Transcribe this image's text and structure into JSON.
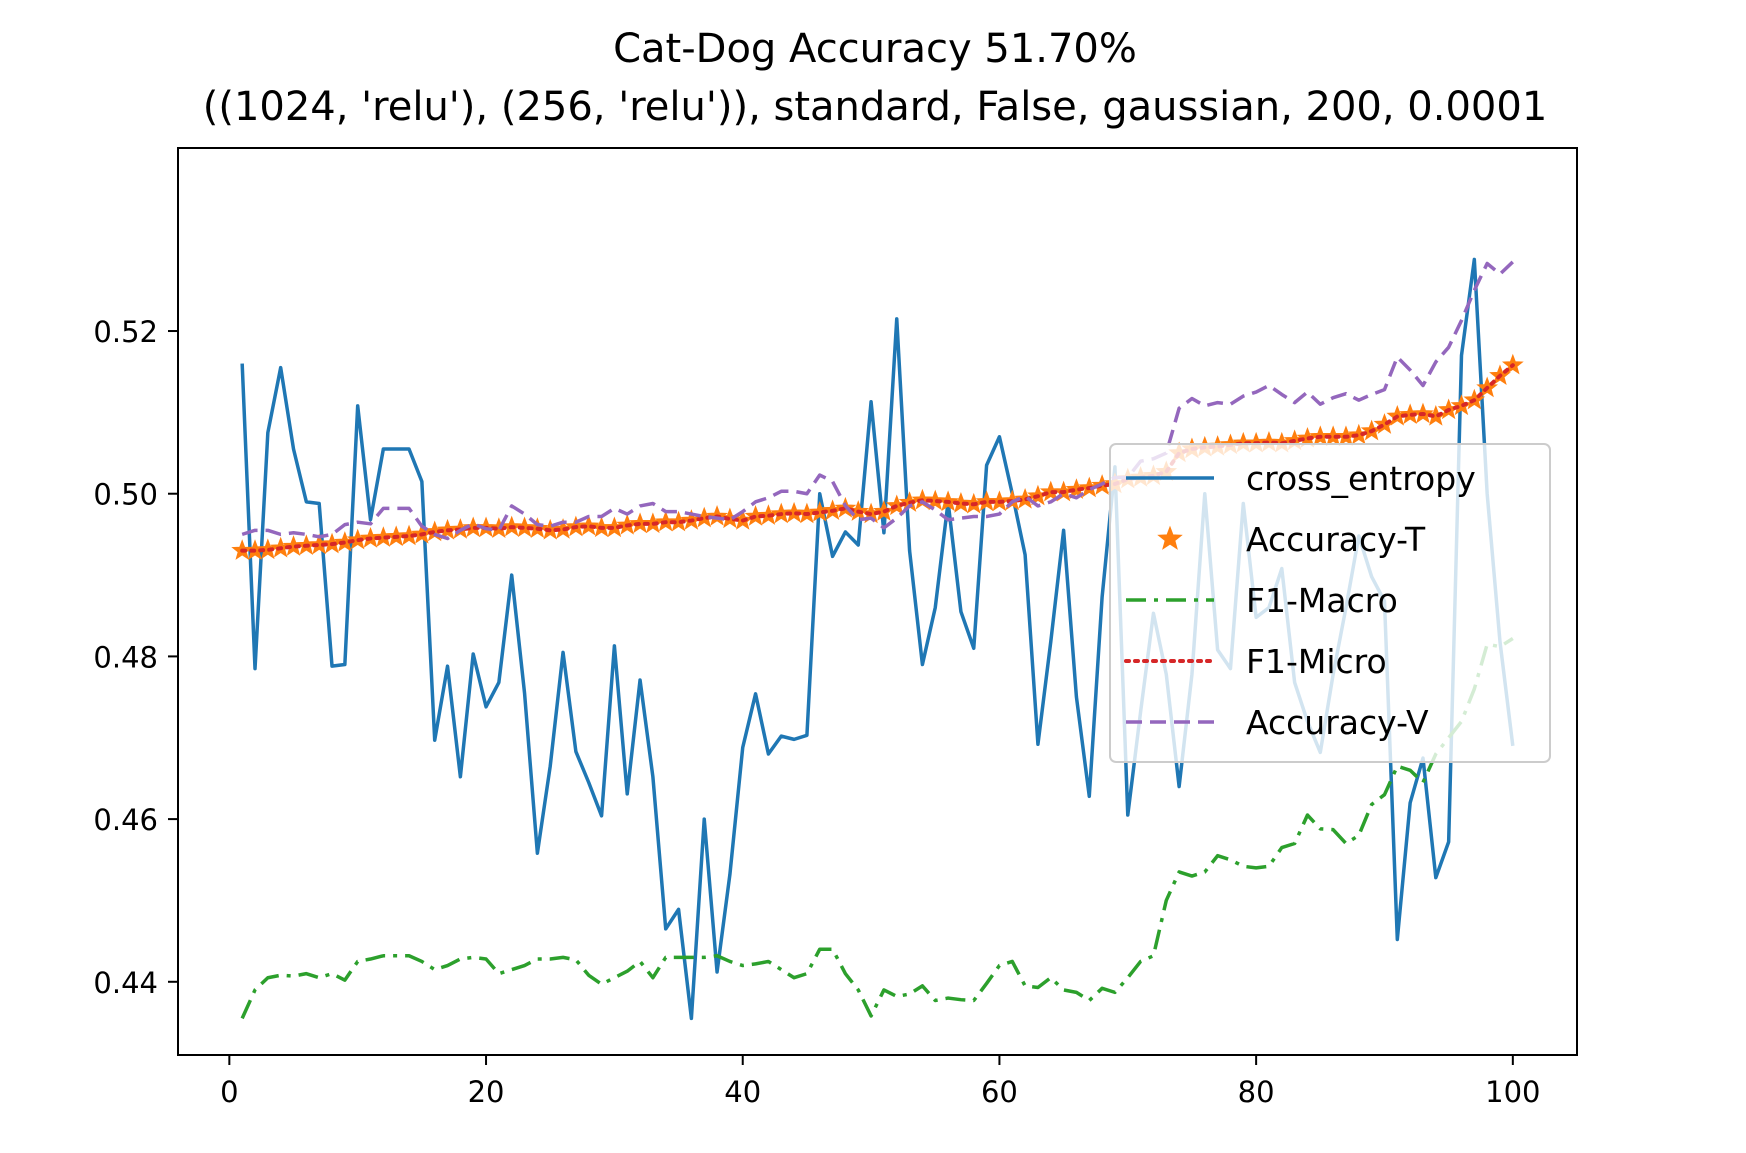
{
  "chart_data": {
    "type": "line",
    "title": "Cat-Dog Accuracy 51.70%",
    "subtitle": "((1024, 'relu'), (256, 'relu')), standard, False, gaussian, 200, 0.0001",
    "xlabel": "",
    "ylabel": "",
    "xlim": [
      -4,
      105
    ],
    "ylim": [
      0.431,
      0.5425
    ],
    "xticks": [
      0,
      20,
      40,
      60,
      80,
      100
    ],
    "yticks": [
      0.44,
      0.46,
      0.48,
      0.5,
      0.52
    ],
    "ytick_labels": [
      "0.44",
      "0.46",
      "0.48",
      "0.50",
      "0.52"
    ],
    "grid": false,
    "legend_position": "center-right",
    "series": [
      {
        "name": "cross_entropy",
        "color": "#1f77b4",
        "style": "solid",
        "x_start": 1,
        "values": [
          0.516,
          0.4785,
          0.5075,
          0.5155,
          0.5055,
          0.499,
          0.4988,
          0.4788,
          0.479,
          0.5108,
          0.4968,
          0.5055,
          0.5055,
          0.5055,
          0.5015,
          0.4697,
          0.4788,
          0.4652,
          0.4803,
          0.4738,
          0.4768,
          0.49,
          0.4755,
          0.4558,
          0.4665,
          0.4805,
          0.4683,
          0.4645,
          0.4604,
          0.4813,
          0.4631,
          0.4771,
          0.4652,
          0.4465,
          0.4489,
          0.4355,
          0.46,
          0.4412,
          0.4532,
          0.4688,
          0.4754,
          0.468,
          0.4702,
          0.4698,
          0.4703,
          0.5,
          0.4923,
          0.4953,
          0.4937,
          0.5113,
          0.4952,
          0.5215,
          0.493,
          0.479,
          0.486,
          0.499,
          0.4855,
          0.481,
          0.5035,
          0.507,
          0.5,
          0.4925,
          0.4692,
          0.4818,
          0.4955,
          0.475,
          0.4628,
          0.4873,
          0.5033,
          0.4605,
          0.4732,
          0.4853,
          0.4778,
          0.464,
          0.4778,
          0.5,
          0.4808,
          0.4785,
          0.4988,
          0.4848,
          0.486,
          0.4908,
          0.4768,
          0.472,
          0.4682,
          0.4778,
          0.486,
          0.4948,
          0.4898,
          0.4868,
          0.4452,
          0.462,
          0.4675,
          0.4528,
          0.4572,
          0.517,
          0.5288,
          0.5,
          0.4818,
          0.469
        ]
      },
      {
        "name": "Accuracy-T",
        "color": "#ff7f0e",
        "style": "star-markers",
        "x_start": 1,
        "values": [
          0.493,
          0.493,
          0.4931,
          0.4933,
          0.4935,
          0.4936,
          0.4937,
          0.4938,
          0.494,
          0.4943,
          0.4945,
          0.4946,
          0.4947,
          0.4948,
          0.495,
          0.4953,
          0.4955,
          0.4956,
          0.4958,
          0.4958,
          0.4957,
          0.4959,
          0.4958,
          0.4957,
          0.4955,
          0.4956,
          0.4959,
          0.496,
          0.4958,
          0.4958,
          0.4961,
          0.4963,
          0.4963,
          0.4965,
          0.4965,
          0.4967,
          0.497,
          0.4972,
          0.4969,
          0.4967,
          0.4972,
          0.4973,
          0.4975,
          0.4976,
          0.4975,
          0.4977,
          0.4979,
          0.4982,
          0.4978,
          0.4975,
          0.4978,
          0.4985,
          0.4989,
          0.4992,
          0.4991,
          0.499,
          0.4988,
          0.4987,
          0.499,
          0.499,
          0.4991,
          0.4993,
          0.4997,
          0.5002,
          0.5002,
          0.5005,
          0.5007,
          0.501,
          0.5012,
          0.5018,
          0.502,
          0.5022,
          0.5027,
          0.505,
          0.5055,
          0.5057,
          0.5058,
          0.506,
          0.5062,
          0.5062,
          0.5063,
          0.5062,
          0.5065,
          0.5068,
          0.507,
          0.507,
          0.507,
          0.5072,
          0.5077,
          0.5085,
          0.5095,
          0.5097,
          0.5098,
          0.5095,
          0.5103,
          0.5108,
          0.5115,
          0.513,
          0.5145,
          0.5158
        ]
      },
      {
        "name": "F1-Macro",
        "color": "#2ca02c",
        "style": "dashdot",
        "x_start": 1,
        "values": [
          0.4355,
          0.439,
          0.4405,
          0.4408,
          0.4407,
          0.441,
          0.4405,
          0.441,
          0.4402,
          0.4425,
          0.4428,
          0.4432,
          0.4432,
          0.4432,
          0.4425,
          0.4415,
          0.442,
          0.4428,
          0.443,
          0.4428,
          0.441,
          0.4415,
          0.442,
          0.4428,
          0.4428,
          0.443,
          0.4427,
          0.4408,
          0.4397,
          0.4405,
          0.4413,
          0.4425,
          0.4405,
          0.443,
          0.443,
          0.443,
          0.443,
          0.4432,
          0.4425,
          0.442,
          0.4422,
          0.4425,
          0.4415,
          0.4405,
          0.441,
          0.444,
          0.444,
          0.441,
          0.439,
          0.4358,
          0.439,
          0.4382,
          0.4385,
          0.4395,
          0.4377,
          0.438,
          0.4378,
          0.4377,
          0.4398,
          0.442,
          0.4425,
          0.4395,
          0.4393,
          0.4405,
          0.439,
          0.4387,
          0.4377,
          0.4392,
          0.4387,
          0.4405,
          0.4425,
          0.4432,
          0.45,
          0.4535,
          0.453,
          0.4535,
          0.4555,
          0.455,
          0.4542,
          0.454,
          0.4542,
          0.4565,
          0.457,
          0.4605,
          0.4588,
          0.4587,
          0.457,
          0.458,
          0.4618,
          0.463,
          0.4665,
          0.466,
          0.4645,
          0.468,
          0.47,
          0.472,
          0.476,
          0.4815,
          0.4812,
          0.4822
        ]
      },
      {
        "name": "F1-Micro",
        "color": "#d62728",
        "style": "dotted",
        "x_start": 1,
        "values": [
          0.493,
          0.493,
          0.4931,
          0.4933,
          0.4935,
          0.4936,
          0.4937,
          0.4938,
          0.494,
          0.4943,
          0.4945,
          0.4946,
          0.4947,
          0.4948,
          0.495,
          0.4953,
          0.4955,
          0.4956,
          0.4958,
          0.4958,
          0.4957,
          0.4959,
          0.4958,
          0.4957,
          0.4955,
          0.4956,
          0.4959,
          0.496,
          0.4958,
          0.4958,
          0.4961,
          0.4963,
          0.4963,
          0.4965,
          0.4965,
          0.4967,
          0.497,
          0.4972,
          0.4969,
          0.4967,
          0.4972,
          0.4973,
          0.4975,
          0.4976,
          0.4975,
          0.4977,
          0.4979,
          0.4982,
          0.4978,
          0.4975,
          0.4978,
          0.4985,
          0.4989,
          0.4992,
          0.4991,
          0.499,
          0.4988,
          0.4987,
          0.499,
          0.499,
          0.4991,
          0.4993,
          0.4997,
          0.5002,
          0.5002,
          0.5005,
          0.5007,
          0.501,
          0.5012,
          0.5018,
          0.502,
          0.5022,
          0.5027,
          0.505,
          0.5055,
          0.5057,
          0.5058,
          0.506,
          0.5062,
          0.5062,
          0.5063,
          0.5062,
          0.5065,
          0.5068,
          0.507,
          0.507,
          0.507,
          0.5072,
          0.5077,
          0.5085,
          0.5095,
          0.5097,
          0.5098,
          0.5095,
          0.5103,
          0.5108,
          0.5115,
          0.513,
          0.5145,
          0.5158
        ]
      },
      {
        "name": "Accuracy-V",
        "color": "#9467bd",
        "style": "dashed",
        "x_start": 1,
        "values": [
          0.495,
          0.4955,
          0.4955,
          0.495,
          0.4952,
          0.495,
          0.4947,
          0.495,
          0.4962,
          0.4965,
          0.4963,
          0.4982,
          0.4982,
          0.4982,
          0.496,
          0.495,
          0.4945,
          0.4955,
          0.4963,
          0.4957,
          0.4955,
          0.4985,
          0.4975,
          0.4962,
          0.496,
          0.4965,
          0.4965,
          0.4972,
          0.4972,
          0.4982,
          0.4975,
          0.4985,
          0.4988,
          0.4978,
          0.4978,
          0.4975,
          0.4972,
          0.497,
          0.4968,
          0.4978,
          0.499,
          0.4995,
          0.5003,
          0.5003,
          0.5,
          0.5023,
          0.5015,
          0.4985,
          0.4968,
          0.497,
          0.4958,
          0.497,
          0.4985,
          0.499,
          0.498,
          0.4968,
          0.497,
          0.4972,
          0.4972,
          0.4975,
          0.499,
          0.4997,
          0.4985,
          0.499,
          0.5,
          0.4995,
          0.5005,
          0.5012,
          0.502,
          0.502,
          0.504,
          0.5043,
          0.505,
          0.5105,
          0.5117,
          0.5108,
          0.5112,
          0.511,
          0.512,
          0.5125,
          0.5133,
          0.5122,
          0.5112,
          0.5125,
          0.511,
          0.5118,
          0.5123,
          0.5115,
          0.5122,
          0.5128,
          0.5168,
          0.5152,
          0.5133,
          0.5162,
          0.518,
          0.5213,
          0.525,
          0.5283,
          0.527,
          0.5285
        ]
      }
    ]
  }
}
